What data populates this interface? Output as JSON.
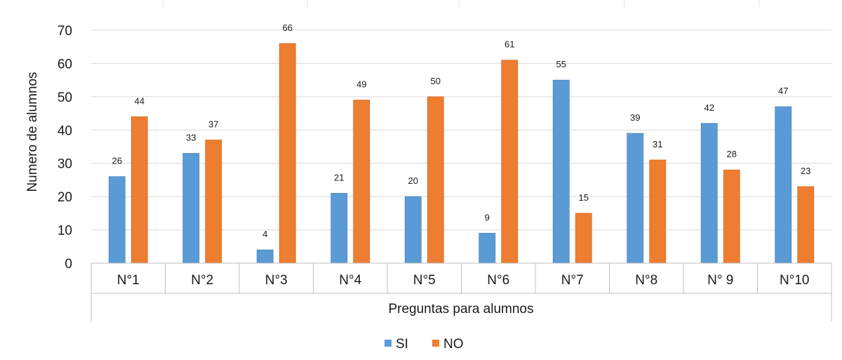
{
  "chart_data": {
    "type": "bar",
    "title": "",
    "xlabel": "Preguntas para alumnos",
    "ylabel": "Numero de alumnos",
    "ylim": [
      0,
      70
    ],
    "yticks": [
      0,
      10,
      20,
      30,
      40,
      50,
      60,
      70
    ],
    "grid": true,
    "legend_position": "bottom",
    "categories": [
      "N°1",
      "N°2",
      "N°3",
      "N°4",
      "N°5",
      "N°6",
      "N°7",
      "N°8",
      "N° 9",
      "N°10"
    ],
    "series": [
      {
        "name": "SI",
        "color": "#5B9BD5",
        "values": [
          26,
          33,
          4,
          21,
          20,
          9,
          55,
          39,
          42,
          47
        ]
      },
      {
        "name": "NO",
        "color": "#ED7D31",
        "values": [
          44,
          37,
          66,
          49,
          50,
          61,
          15,
          31,
          28,
          23
        ]
      }
    ]
  }
}
